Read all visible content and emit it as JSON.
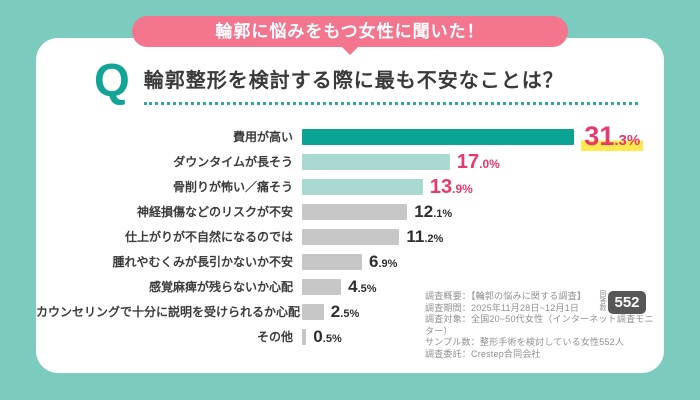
{
  "theme": {
    "background": "#7bccbf",
    "card": "#ffffff",
    "banner_pink": "#f3758e",
    "accent_teal": "#12a494"
  },
  "banner": {
    "label": "輪郭に悩みをもつ女性に聞いた！"
  },
  "question": {
    "mark": "Q",
    "title": "輪郭整形を検討する際に最も不安なことは？"
  },
  "chart_data": {
    "type": "bar",
    "orientation": "horizontal",
    "title": "輪郭整形を検討する際に最も不安なことは？",
    "unit": "%",
    "categories": [
      "費用が高い",
      "ダウンタイムが長そう",
      "骨削りが怖い／痛そう",
      "神経損傷などのリスクが不安",
      "仕上がりが不自然になるのでは",
      "腫れやむくみが長引かないか不安",
      "感覚麻痺が残らないか心配",
      "カウンセリングで十分に説明を受けられるか心配",
      "その他"
    ],
    "values": [
      31.3,
      17.0,
      13.9,
      12.1,
      11.2,
      6.9,
      4.5,
      2.5,
      0.5
    ],
    "xlim": [
      0,
      32
    ],
    "grid": false,
    "legend": false,
    "emphasis": [
      "primary",
      "secondary",
      "secondary",
      "normal",
      "normal",
      "normal",
      "normal",
      "normal",
      "normal"
    ],
    "colors": {
      "primary_bar": "#0ba394",
      "secondary_bar": "#a9dad1",
      "normal_bar": "#c7c7c7",
      "accent_value": "#e8386e",
      "normal_value": "#2e2e2e",
      "highlight_marker": "#ffe94f"
    }
  },
  "survey_info": {
    "lines": [
      "調査概要：【輪郭の悩みに関する調査】",
      "調査期間：2025年11月28日~12月1日",
      "調査対象：全国20~50代女性（インターネット調査モニター）",
      "サンプル数：整形手術を検討している女性552人",
      "調査委託：Crestep合同会社"
    ]
  },
  "response_badge": {
    "label": "回答数",
    "count": "552"
  }
}
